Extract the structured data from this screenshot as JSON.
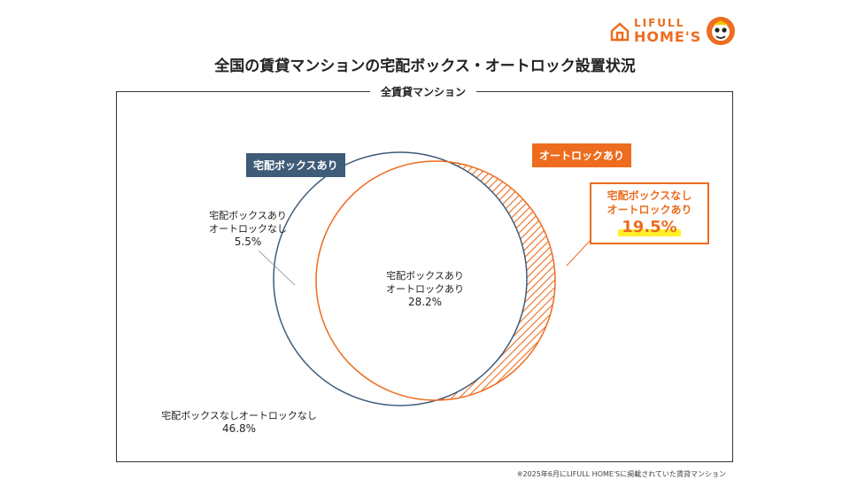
{
  "brand": {
    "logo_top": "LIFULL",
    "logo_bottom": "HOME'S",
    "brand_color": "#ed6c1f"
  },
  "title": "全国の賃貸マンションの宅配ボックス・オートロック設置状況",
  "frame_label": "全賃貸マンション",
  "sets": {
    "box": {
      "label": "宅配ボックスあり",
      "color": "#3e5b78"
    },
    "autolock": {
      "label": "オートロックあり",
      "color": "#ed6c1f"
    }
  },
  "regions": {
    "box_only": {
      "line1": "宅配ボックスあり",
      "line2": "オートロックなし",
      "value": "5.5%"
    },
    "both": {
      "line1": "宅配ボックスあり",
      "line2": "オートロックあり",
      "value": "28.2%"
    },
    "autolock_only": {
      "line1": "宅配ボックスなし",
      "line2": "オートロックあり",
      "value": "19.5%"
    },
    "neither": {
      "line1": "宅配ボックスなしオートロックなし",
      "value": "46.8%"
    }
  },
  "footnote": "※2025年6月にLIFULL HOME'Sに掲載されていた賃貸マンション"
}
